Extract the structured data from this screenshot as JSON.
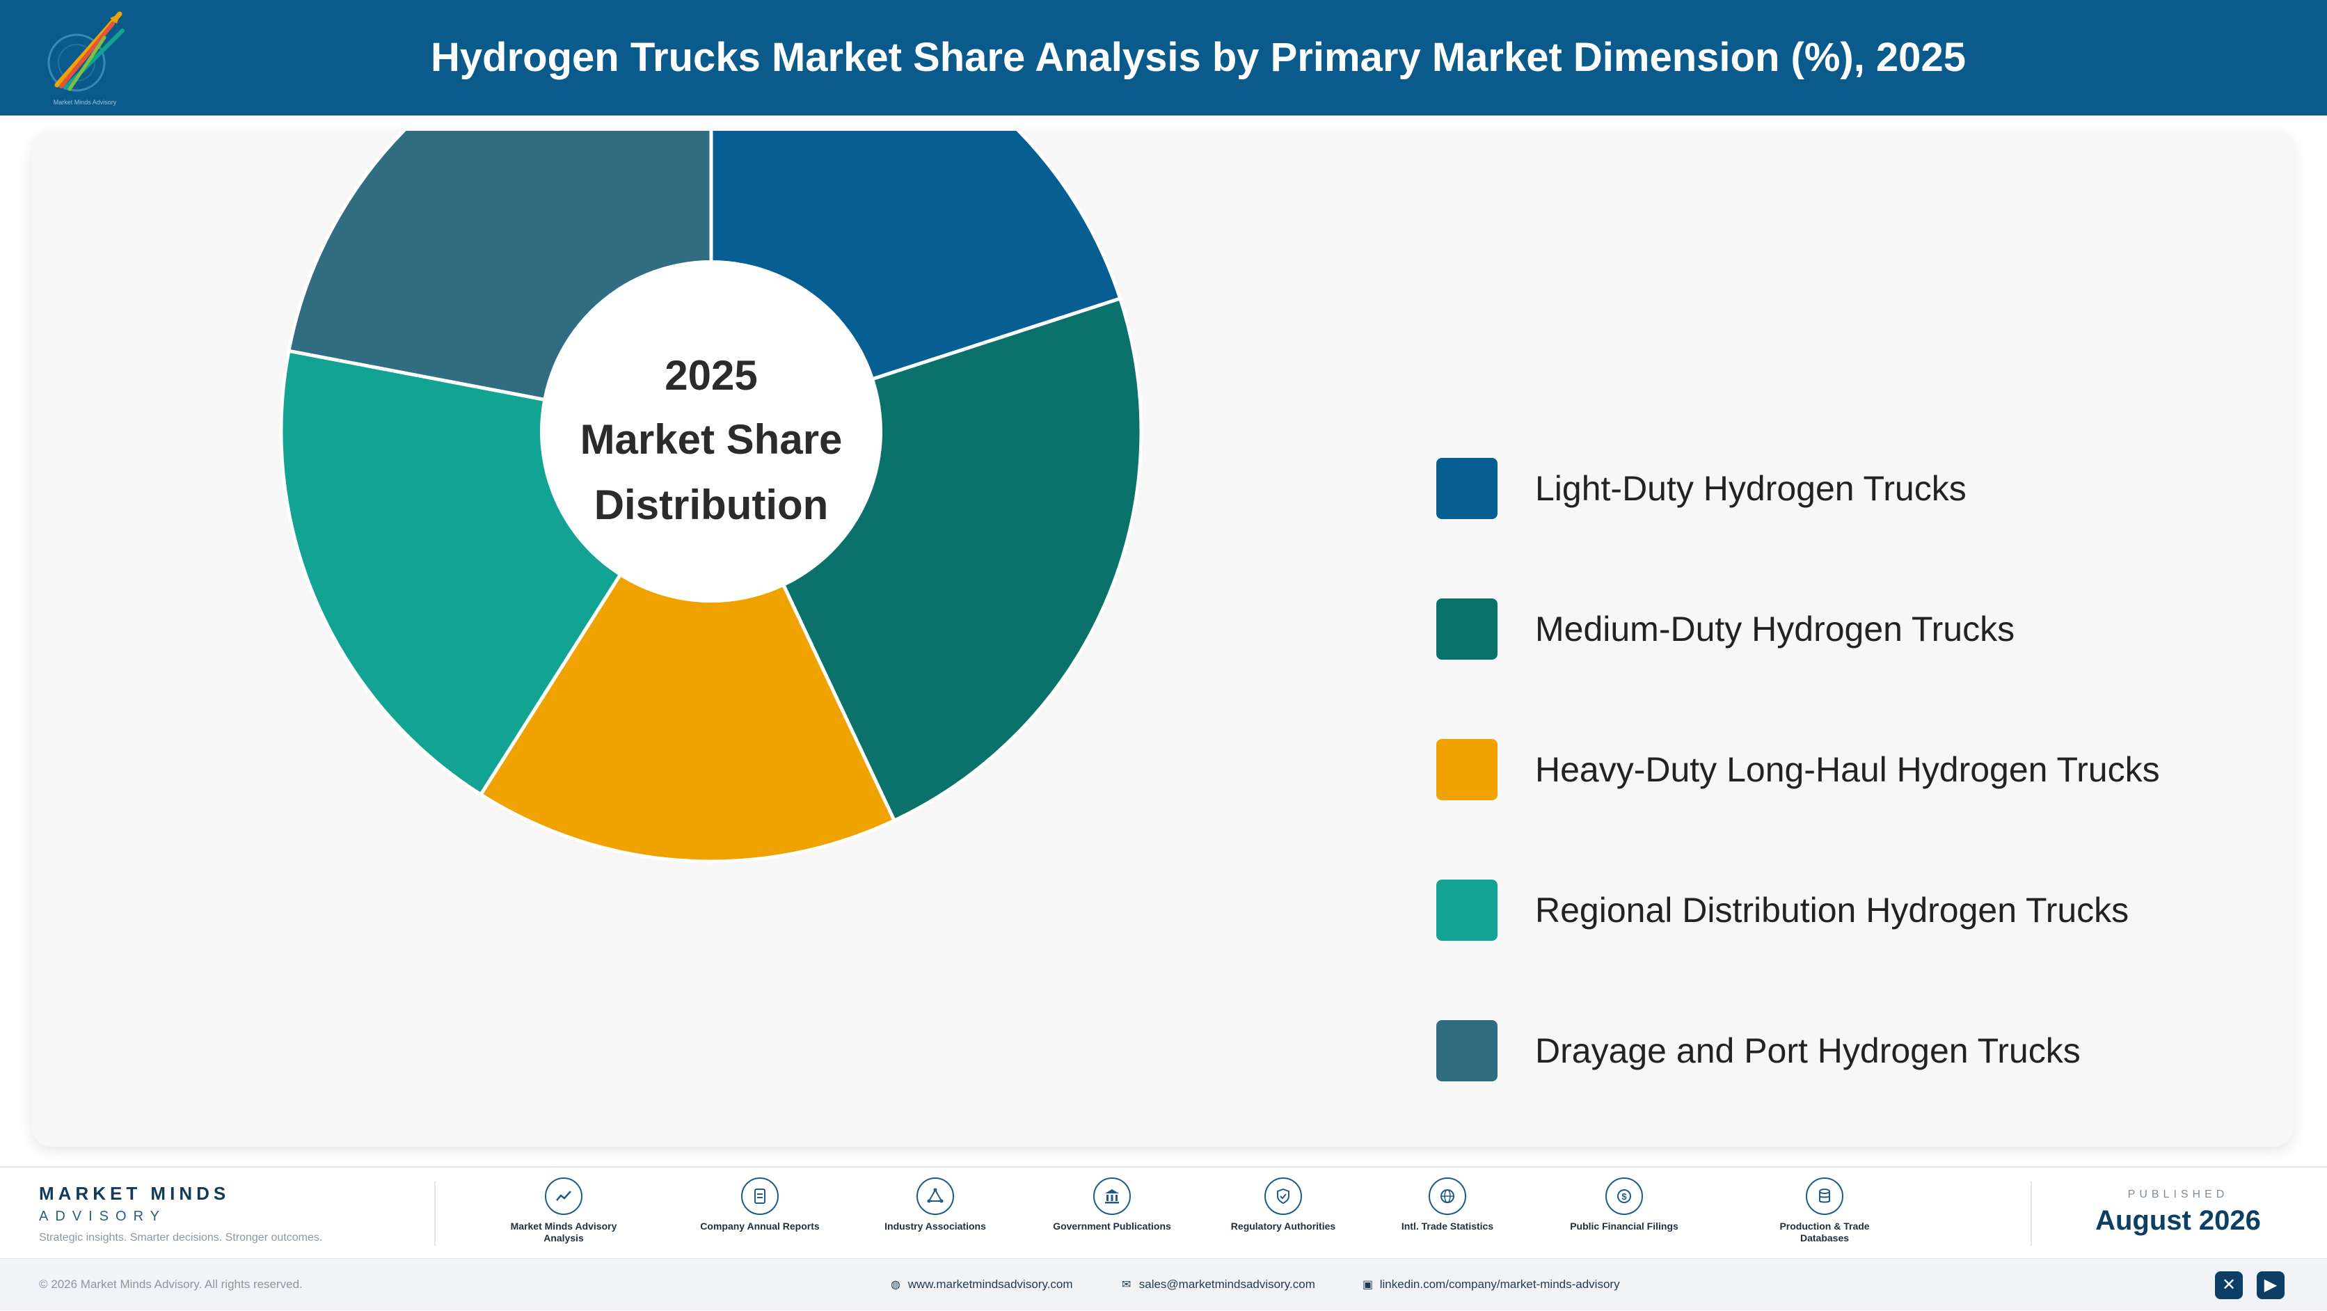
{
  "header": {
    "title": "Hydrogen Trucks Market Share Analysis by Primary Market Dimension (%), 2025",
    "logo_text": "Market Minds Advisory"
  },
  "chart_data": {
    "type": "pie",
    "title": "Hydrogen Trucks Market Share Analysis by Primary Market Dimension (%), 2025",
    "center_label": [
      "2025",
      "Market Share",
      "Distribution"
    ],
    "categories": [
      "Light-Duty Hydrogen Trucks",
      "Medium-Duty Hydrogen Trucks",
      "Heavy-Duty Long-Haul Hydrogen Trucks",
      "Regional Distribution Hydrogen Trucks",
      "Drayage and Port Hydrogen Trucks"
    ],
    "values": [
      20,
      23,
      16,
      19,
      22
    ],
    "unit": "%",
    "colors": [
      "#075e93",
      "#0b716b",
      "#f0a300",
      "#12a392",
      "#316d80"
    ],
    "legend_position": "right",
    "donut": true
  },
  "footer": {
    "brand_name": "MARKET MINDS",
    "brand_sub": "ADVISORY",
    "brand_tag": "Strategic insights. Smarter decisions. Stronger outcomes.",
    "sources": [
      {
        "label": "Market Minds Advisory Analysis",
        "icon": "chart-line-icon"
      },
      {
        "label": "Company Annual Reports",
        "icon": "document-icon"
      },
      {
        "label": "Industry Associations",
        "icon": "network-icon"
      },
      {
        "label": "Government Publications",
        "icon": "building-icon"
      },
      {
        "label": "Regulatory Authorities",
        "icon": "shield-icon"
      },
      {
        "label": "Intl. Trade Statistics",
        "icon": "globe-icon"
      },
      {
        "label": "Public Financial Filings",
        "icon": "coin-icon"
      },
      {
        "label": "Production & Trade Databases",
        "icon": "database-icon"
      }
    ],
    "published_label": "PUBLISHED",
    "published_date": "August 2026"
  },
  "bottom_bar": {
    "copyright": "© 2026 Market Minds Advisory. All rights reserved.",
    "website": "www.marketmindsadvisory.com",
    "email": "sales@marketmindsadvisory.com",
    "linkedin": "linkedin.com/company/market-minds-advisory"
  }
}
